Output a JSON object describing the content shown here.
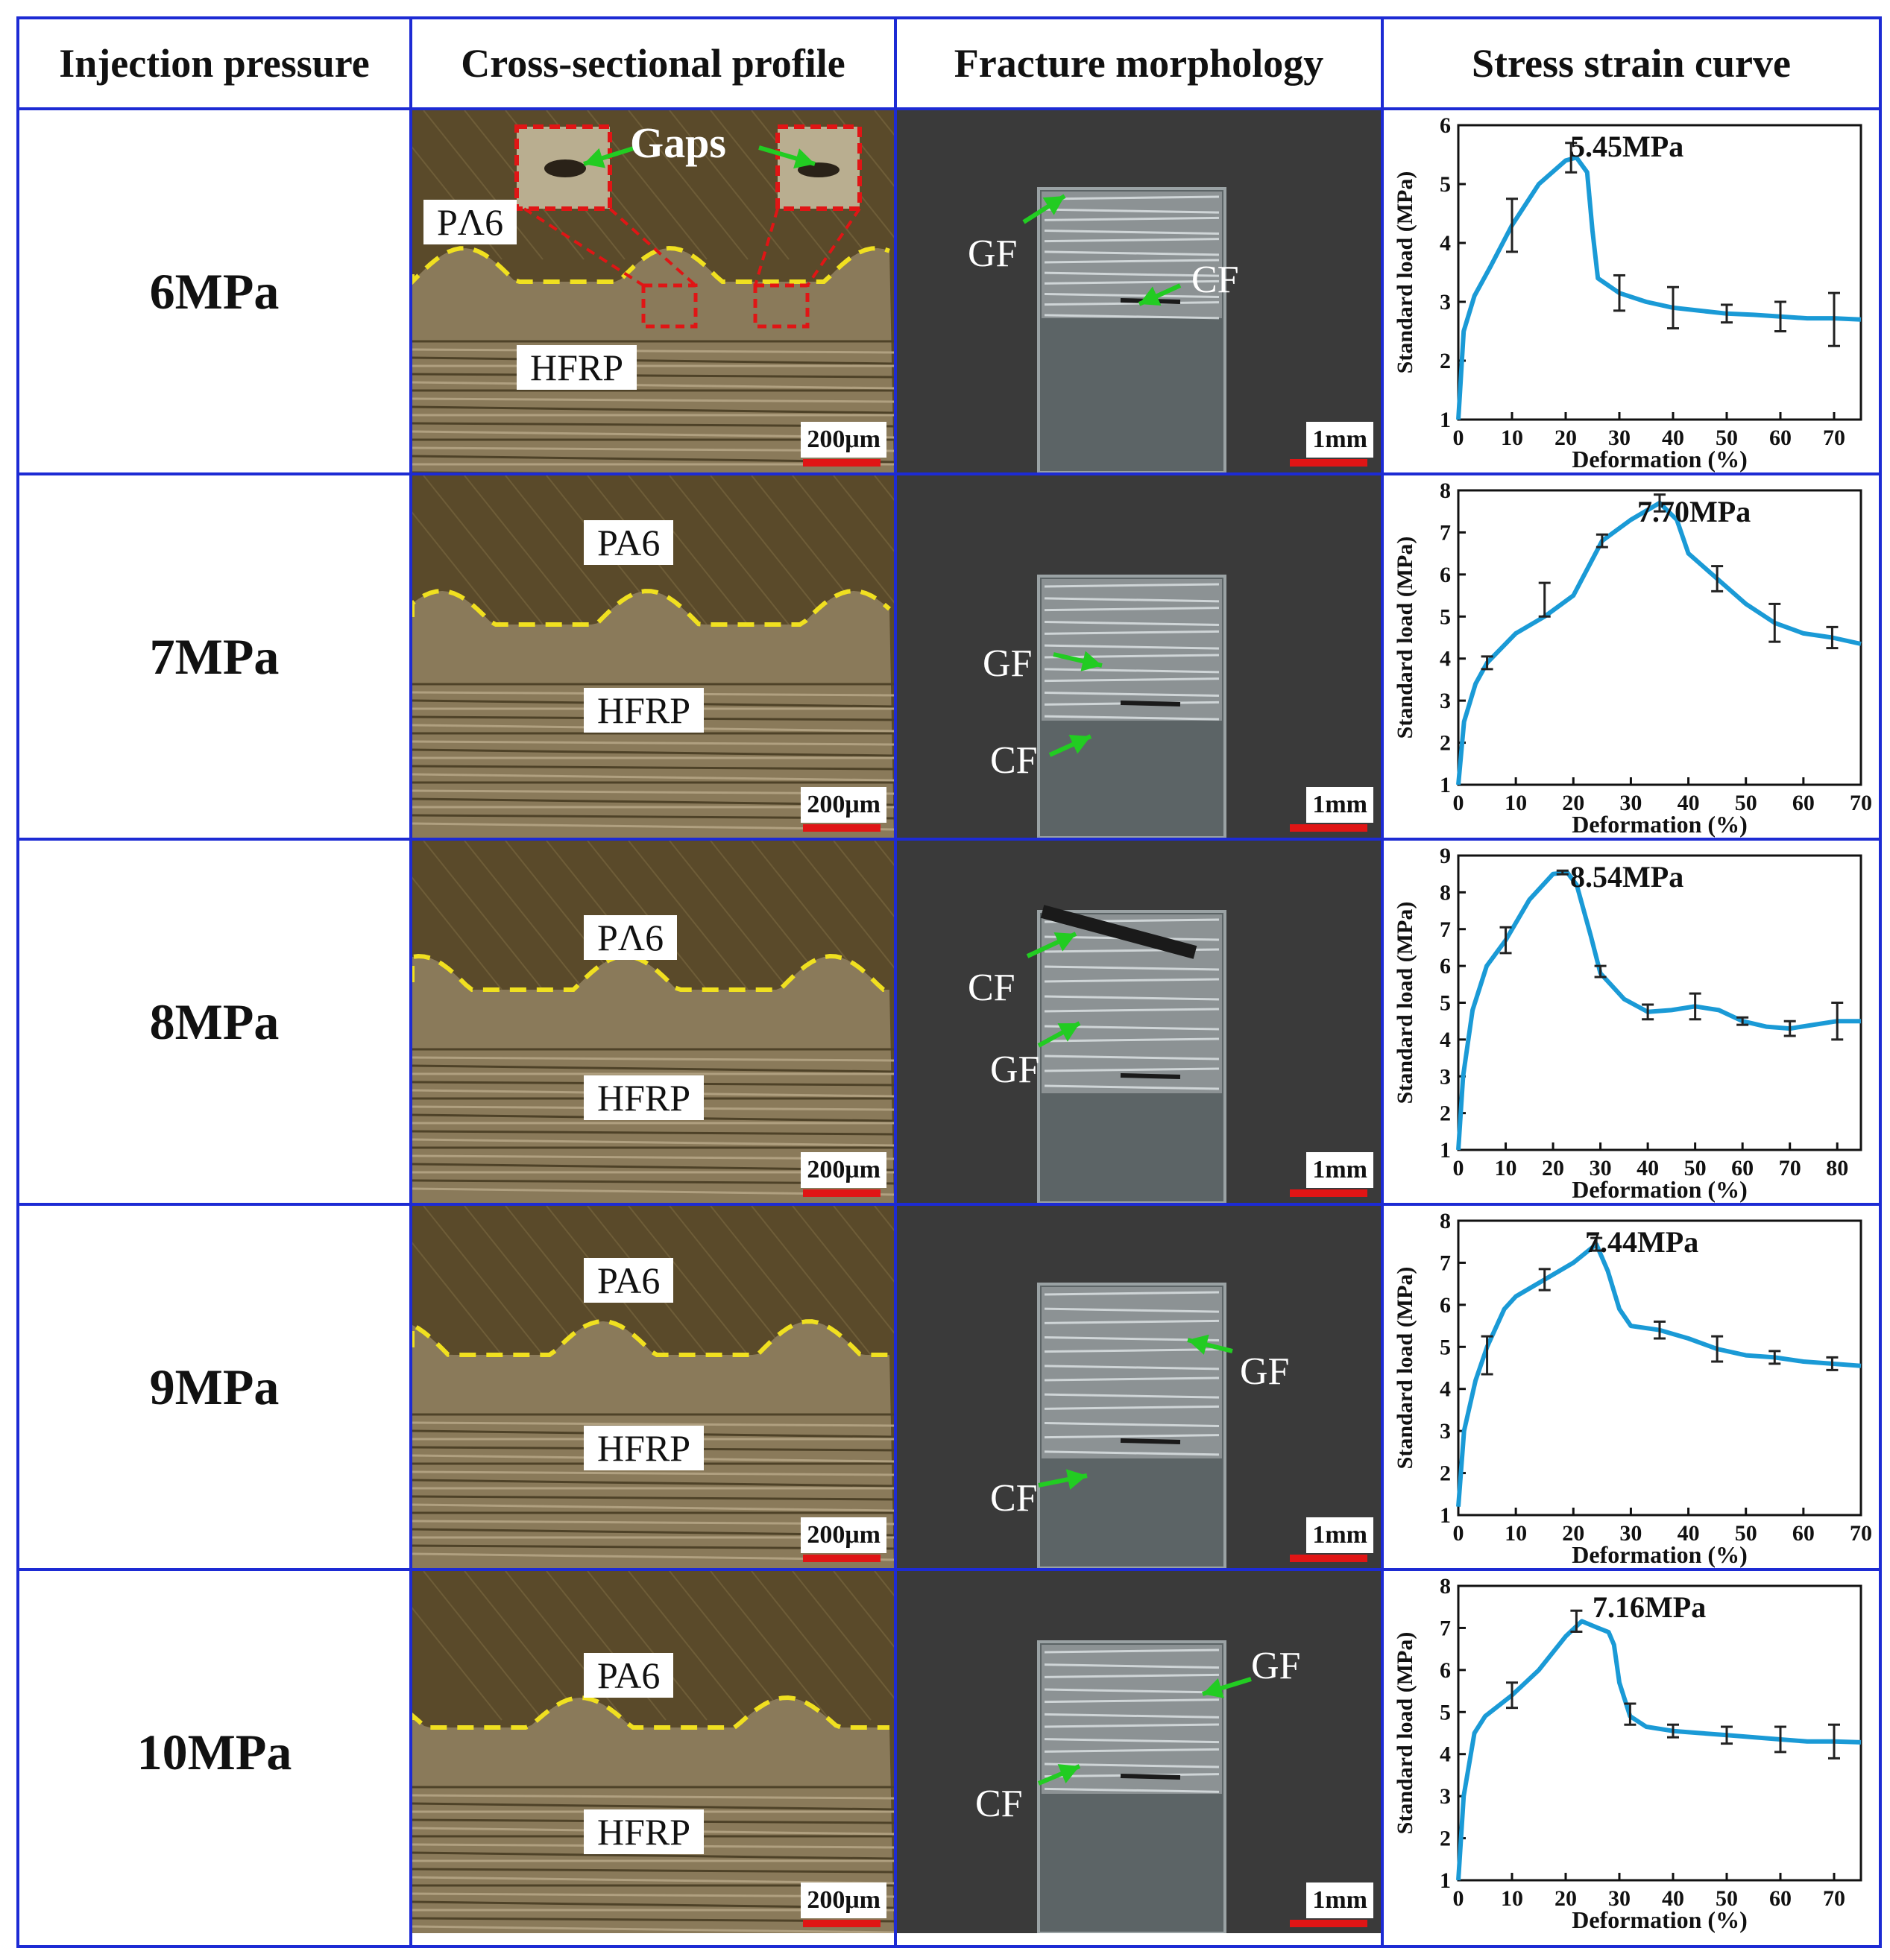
{
  "headers": {
    "col1": "Injection pressure",
    "col2": "Cross-sectional profile",
    "col3": "Fracture morphology",
    "col4": "Stress strain curve"
  },
  "labels": {
    "pa6": "PA6",
    "pa6_alt": "PΛ6",
    "hfrp": "HFRP",
    "gaps": "Gaps",
    "gf": "GF",
    "cf": "CF",
    "scale_cross": "200μm",
    "scale_fracture": "1mm"
  },
  "colors": {
    "grid": "#1d2bd4",
    "curve": "#1a9ad6",
    "interface": "#f0e020",
    "arrow": "#22cc22",
    "scalebar": "#e01515"
  },
  "rows": [
    {
      "pressure": "6MPa",
      "pa6_label": "PΛ6",
      "peak_label": "5.45MPa"
    },
    {
      "pressure": "7MPa",
      "pa6_label": "PA6",
      "peak_label": "7.70MPa"
    },
    {
      "pressure": "8MPa",
      "pa6_label": "PΛ6",
      "peak_label": "8.54MPa"
    },
    {
      "pressure": "9MPa",
      "pa6_label": "PA6",
      "peak_label": "7.44MPa"
    },
    {
      "pressure": "10MPa",
      "pa6_label": "PA6",
      "peak_label": "7.16MPa"
    }
  ],
  "chart_data": [
    {
      "type": "line",
      "xlabel": "Deformation (%)",
      "ylabel": "Standard load (MPa)",
      "xlim": [
        0,
        75
      ],
      "ylim": [
        1,
        6
      ],
      "xticks": [
        0,
        10,
        20,
        30,
        40,
        50,
        60,
        70
      ],
      "yticks": [
        1,
        2,
        3,
        4,
        5,
        6
      ],
      "annotation": "5.45MPa",
      "x": [
        0,
        1,
        3,
        6,
        10,
        15,
        20,
        22,
        24,
        25,
        26,
        30,
        35,
        40,
        45,
        50,
        55,
        60,
        65,
        70,
        75
      ],
      "y": [
        1,
        2.5,
        3.1,
        3.6,
        4.3,
        5.0,
        5.4,
        5.45,
        5.2,
        4.2,
        3.4,
        3.15,
        3.0,
        2.9,
        2.85,
        2.8,
        2.78,
        2.75,
        2.72,
        2.72,
        2.7
      ],
      "errorbars": [
        {
          "x": 10,
          "y": 4.3,
          "e": 0.45
        },
        {
          "x": 21,
          "y": 5.45,
          "e": 0.25
        },
        {
          "x": 30,
          "y": 3.15,
          "e": 0.3
        },
        {
          "x": 40,
          "y": 2.9,
          "e": 0.35
        },
        {
          "x": 50,
          "y": 2.8,
          "e": 0.15
        },
        {
          "x": 60,
          "y": 2.75,
          "e": 0.25
        },
        {
          "x": 70,
          "y": 2.7,
          "e": 0.45
        }
      ]
    },
    {
      "type": "line",
      "xlabel": "Deformation (%)",
      "ylabel": "Standard load (MPa)",
      "xlim": [
        0,
        70
      ],
      "ylim": [
        1,
        8
      ],
      "xticks": [
        0,
        10,
        20,
        30,
        40,
        50,
        60,
        70
      ],
      "yticks": [
        1,
        2,
        3,
        4,
        5,
        6,
        7,
        8
      ],
      "annotation": "7.70MPa",
      "x": [
        0,
        1,
        3,
        5,
        10,
        15,
        20,
        25,
        30,
        35,
        38,
        40,
        45,
        50,
        55,
        60,
        65,
        70
      ],
      "y": [
        1,
        2.5,
        3.4,
        3.9,
        4.6,
        5.0,
        5.5,
        6.8,
        7.3,
        7.7,
        7.3,
        6.5,
        5.9,
        5.3,
        4.85,
        4.6,
        4.5,
        4.35
      ],
      "errorbars": [
        {
          "x": 5,
          "y": 3.9,
          "e": 0.15
        },
        {
          "x": 15,
          "y": 5.4,
          "e": 0.4
        },
        {
          "x": 25,
          "y": 6.8,
          "e": 0.15
        },
        {
          "x": 35,
          "y": 7.7,
          "e": 0.2
        },
        {
          "x": 45,
          "y": 5.9,
          "e": 0.3
        },
        {
          "x": 55,
          "y": 4.85,
          "e": 0.45
        },
        {
          "x": 65,
          "y": 4.5,
          "e": 0.25
        }
      ]
    },
    {
      "type": "line",
      "xlabel": "Deformation (%)",
      "ylabel": "Standard load (MPa)",
      "xlim": [
        0,
        85
      ],
      "ylim": [
        1,
        9
      ],
      "xticks": [
        0,
        10,
        20,
        30,
        40,
        50,
        60,
        70,
        80
      ],
      "yticks": [
        1,
        2,
        3,
        4,
        5,
        6,
        7,
        8,
        9
      ],
      "annotation": "8.54MPa",
      "x": [
        0,
        1,
        3,
        6,
        10,
        15,
        20,
        23,
        25,
        28,
        30,
        35,
        40,
        45,
        50,
        55,
        60,
        65,
        70,
        75,
        80,
        85
      ],
      "y": [
        1,
        3,
        4.8,
        6,
        6.7,
        7.8,
        8.5,
        8.54,
        8.2,
        6.8,
        5.8,
        5.1,
        4.75,
        4.8,
        4.9,
        4.8,
        4.5,
        4.35,
        4.3,
        4.4,
        4.5,
        4.5
      ],
      "errorbars": [
        {
          "x": 10,
          "y": 6.7,
          "e": 0.35
        },
        {
          "x": 22,
          "y": 8.54,
          "e": 0.05
        },
        {
          "x": 30,
          "y": 5.85,
          "e": 0.15
        },
        {
          "x": 40,
          "y": 4.75,
          "e": 0.2
        },
        {
          "x": 50,
          "y": 4.9,
          "e": 0.35
        },
        {
          "x": 60,
          "y": 4.5,
          "e": 0.1
        },
        {
          "x": 70,
          "y": 4.3,
          "e": 0.2
        },
        {
          "x": 80,
          "y": 4.5,
          "e": 0.5
        }
      ]
    },
    {
      "type": "line",
      "xlabel": "Deformation (%)",
      "ylabel": "Standard load (MPa)",
      "xlim": [
        0,
        70
      ],
      "ylim": [
        1,
        8
      ],
      "xticks": [
        0,
        10,
        20,
        30,
        40,
        50,
        60,
        70
      ],
      "yticks": [
        1,
        2,
        3,
        4,
        5,
        6,
        7,
        8
      ],
      "annotation": "7.44MPa",
      "x": [
        0,
        1,
        3,
        5,
        8,
        10,
        15,
        20,
        24,
        26,
        28,
        30,
        35,
        40,
        45,
        50,
        55,
        60,
        65,
        70
      ],
      "y": [
        1.2,
        3,
        4.2,
        5,
        5.9,
        6.2,
        6.6,
        7.0,
        7.44,
        6.8,
        5.9,
        5.5,
        5.4,
        5.2,
        4.95,
        4.8,
        4.75,
        4.65,
        4.6,
        4.55
      ],
      "errorbars": [
        {
          "x": 5,
          "y": 4.8,
          "e": 0.45
        },
        {
          "x": 15,
          "y": 6.6,
          "e": 0.25
        },
        {
          "x": 24,
          "y": 7.44,
          "e": 0.15
        },
        {
          "x": 35,
          "y": 5.4,
          "e": 0.2
        },
        {
          "x": 45,
          "y": 4.95,
          "e": 0.3
        },
        {
          "x": 55,
          "y": 4.75,
          "e": 0.15
        },
        {
          "x": 65,
          "y": 4.6,
          "e": 0.15
        }
      ]
    },
    {
      "type": "line",
      "xlabel": "Deformation (%)",
      "ylabel": "Standard load (MPa)",
      "xlim": [
        0,
        75
      ],
      "ylim": [
        1,
        8
      ],
      "xticks": [
        0,
        10,
        20,
        30,
        40,
        50,
        60,
        70
      ],
      "yticks": [
        1,
        2,
        3,
        4,
        5,
        6,
        7,
        8
      ],
      "annotation": "7.16MPa",
      "x": [
        0,
        1,
        3,
        5,
        10,
        15,
        20,
        23,
        26,
        28,
        29,
        30,
        32,
        35,
        40,
        45,
        50,
        55,
        60,
        65,
        70,
        75
      ],
      "y": [
        1,
        3,
        4.5,
        4.9,
        5.4,
        6.0,
        6.8,
        7.16,
        7.0,
        6.9,
        6.6,
        5.7,
        4.9,
        4.65,
        4.55,
        4.5,
        4.45,
        4.4,
        4.35,
        4.3,
        4.3,
        4.28
      ],
      "errorbars": [
        {
          "x": 10,
          "y": 5.4,
          "e": 0.3
        },
        {
          "x": 22,
          "y": 7.16,
          "e": 0.25
        },
        {
          "x": 32,
          "y": 4.95,
          "e": 0.25
        },
        {
          "x": 40,
          "y": 4.55,
          "e": 0.15
        },
        {
          "x": 50,
          "y": 4.45,
          "e": 0.2
        },
        {
          "x": 60,
          "y": 4.35,
          "e": 0.3
        },
        {
          "x": 70,
          "y": 4.3,
          "e": 0.4
        }
      ]
    }
  ]
}
